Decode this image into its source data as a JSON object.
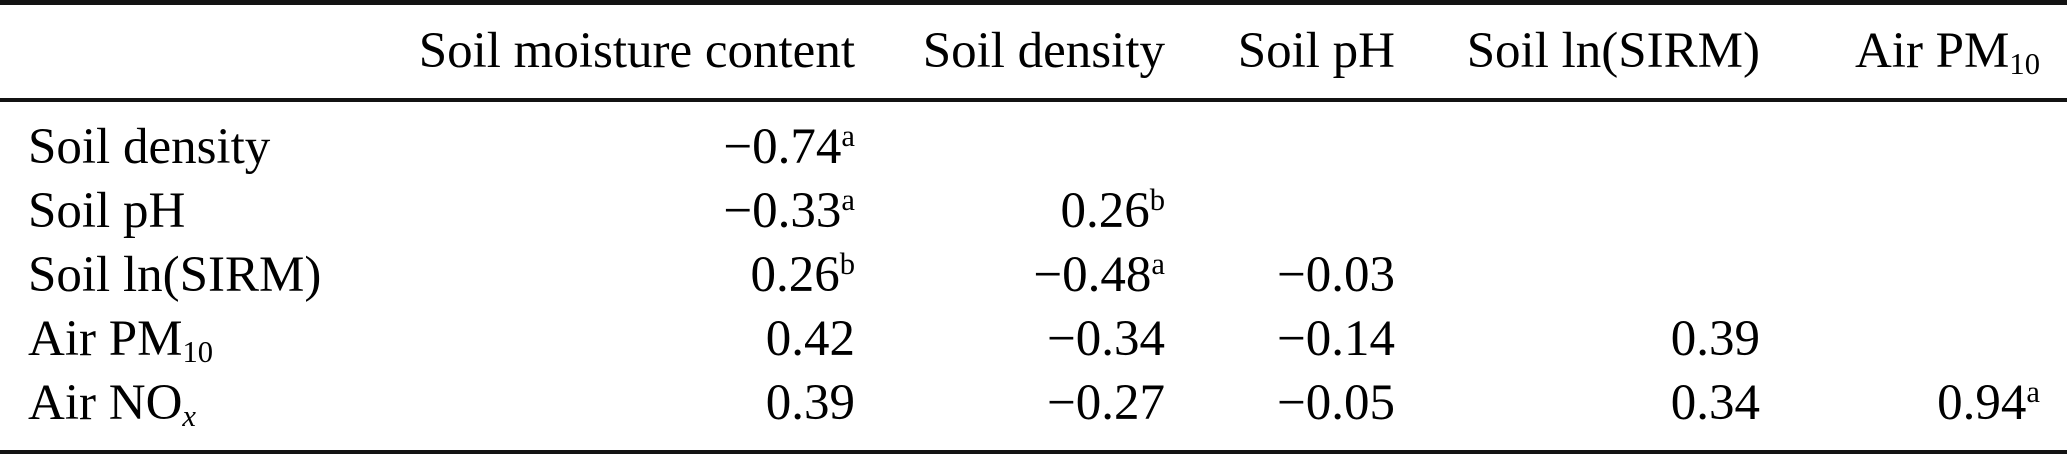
{
  "page": {
    "background_color": "#ffffff",
    "text_color": "#000000",
    "rule_color": "#131313"
  },
  "table": {
    "headers": [
      {
        "text": ""
      },
      {
        "text": "Soil moisture content"
      },
      {
        "text": "Soil density"
      },
      {
        "text": "Soil pH"
      },
      {
        "text": "Soil ln(SIRM)"
      },
      {
        "text": "Air PM",
        "sub": "10"
      }
    ],
    "rows": [
      {
        "label": {
          "text": "Soil density"
        },
        "cells": [
          {
            "value": "−0.74",
            "sup": "a"
          },
          {},
          {},
          {},
          {}
        ]
      },
      {
        "label": {
          "text": "Soil pH"
        },
        "cells": [
          {
            "value": "−0.33",
            "sup": "a"
          },
          {
            "value": "0.26",
            "sup": "b"
          },
          {},
          {},
          {}
        ]
      },
      {
        "label": {
          "text": "Soil ln(SIRM)"
        },
        "cells": [
          {
            "value": "0.26",
            "sup": "b"
          },
          {
            "value": "−0.48",
            "sup": "a"
          },
          {
            "value": "−0.03"
          },
          {},
          {}
        ]
      },
      {
        "label": {
          "text": "Air PM",
          "sub": "10"
        },
        "cells": [
          {
            "value": "0.42"
          },
          {
            "value": "−0.34"
          },
          {
            "value": "−0.14"
          },
          {
            "value": "0.39"
          },
          {}
        ]
      },
      {
        "label": {
          "text": "Air NO",
          "sub": "x"
        },
        "cells": [
          {
            "value": "0.39"
          },
          {
            "value": "−0.27"
          },
          {
            "value": "−0.05"
          },
          {
            "value": "0.34"
          },
          {
            "value": "0.94",
            "sup": "a"
          }
        ]
      }
    ]
  }
}
